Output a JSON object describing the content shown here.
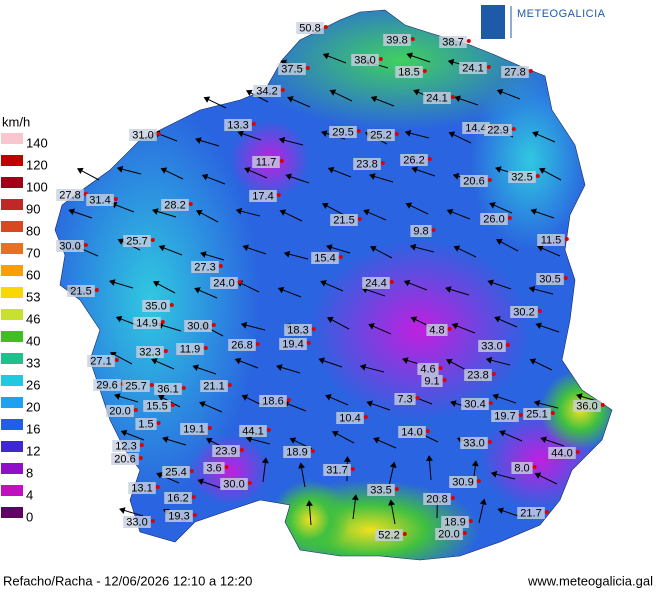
{
  "header": {
    "logo": "METEOGALICIA"
  },
  "legend": {
    "unit": "km/h",
    "labels": [
      "140",
      "120",
      "100",
      "90",
      "80",
      "70",
      "60",
      "53",
      "46",
      "40",
      "33",
      "26",
      "20",
      "16",
      "12",
      "8",
      "4",
      "0"
    ],
    "colors": [
      "#f9c6cf",
      "#c00000",
      "#a00018",
      "#c02828",
      "#d84820",
      "#e87020",
      "#f8a000",
      "#f8d800",
      "#c8e030",
      "#40c020",
      "#20c08c",
      "#20c8e0",
      "#20a0f0",
      "#2060e8",
      "#4028d0",
      "#9010c8",
      "#c010c0",
      "#600060"
    ]
  },
  "stations": [
    "50.8",
    "39.8",
    "38.7",
    "38.0",
    "37.5",
    "18.5",
    "24.1",
    "27.8",
    "34.2",
    "24.1",
    "13.3",
    "29.5",
    "25.2",
    "14.4",
    "22.9",
    "31.0",
    "26.2",
    "11.7",
    "23.8",
    "20.6",
    "32.5",
    "27.8",
    "31.4",
    "17.4",
    "28.2",
    "26.0",
    "21.5",
    "9.8",
    "11.5",
    "30.0",
    "25.7",
    "15.4",
    "27.3",
    "24.0",
    "24.4",
    "30.5",
    "21.5",
    "35.0",
    "30.2",
    "14.9",
    "30.0",
    "18.3",
    "4.8",
    "19.4",
    "26.8",
    "33.0",
    "32.3",
    "11.9",
    "27.1",
    "4.6",
    "9.1",
    "23.8",
    "29.6",
    "25.7",
    "36.1",
    "21.1",
    "36.0",
    "18.6",
    "7.3",
    "30.4",
    "19.7",
    "25.1",
    "20.0",
    "15.5",
    "10.4",
    "14.0",
    "44.1",
    "19.1",
    "12.3",
    "33.0",
    "23.9",
    "18.9",
    "44.0",
    "20.6",
    "31.7",
    "8.0",
    "25.4",
    "3.6",
    "30.9",
    "30.0",
    "13.1",
    "33.5",
    "16.2",
    "20.8",
    "19.3",
    "21.7",
    "18.9",
    "33.0",
    "52.2",
    "20.0",
    "1.5"
  ],
  "footer": {
    "left": "Refacho/Racha - 12/06/2026 12:10 a 12:20",
    "right": "www.meteogalicia.gal"
  }
}
